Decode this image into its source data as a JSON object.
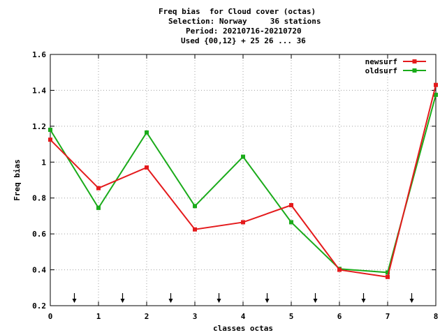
{
  "chart_data": {
    "type": "line",
    "title_lines": [
      "Freq bias  for Cloud cover (octas)",
      "Selection: Norway     36 stations",
      "Period: 20210716-20210720",
      "Used {00,12} + 25 26 ... 36"
    ],
    "xlabel": "classes octas",
    "ylabel": "Freq bias",
    "xlim": [
      0,
      8
    ],
    "ylim": [
      0.2,
      1.6
    ],
    "x_ticks": [
      "0",
      "1",
      "2",
      "3",
      "4",
      "5",
      "6",
      "7",
      "8"
    ],
    "y_ticks": [
      "0.2",
      "0.4",
      "0.6",
      "0.8",
      "1",
      "1.2",
      "1.4",
      "1.6"
    ],
    "grid": true,
    "legend_position": "top-right",
    "x": [
      0,
      1,
      2,
      3,
      4,
      5,
      6,
      7,
      8
    ],
    "series": [
      {
        "name": "newsurf",
        "color": "#e41a1c",
        "marker": "filled-square",
        "values": [
          1.125,
          0.855,
          0.97,
          0.625,
          0.665,
          0.76,
          0.4,
          0.36,
          1.43
        ]
      },
      {
        "name": "oldsurf",
        "color": "#1aab1a",
        "marker": "filled-square",
        "values": [
          1.18,
          0.745,
          1.165,
          0.755,
          1.03,
          0.665,
          0.405,
          0.385,
          1.375
        ]
      }
    ],
    "arrow_markers_x": [
      0.5,
      1.5,
      2.5,
      3.5,
      4.5,
      5.5,
      6.5,
      7.5
    ]
  }
}
